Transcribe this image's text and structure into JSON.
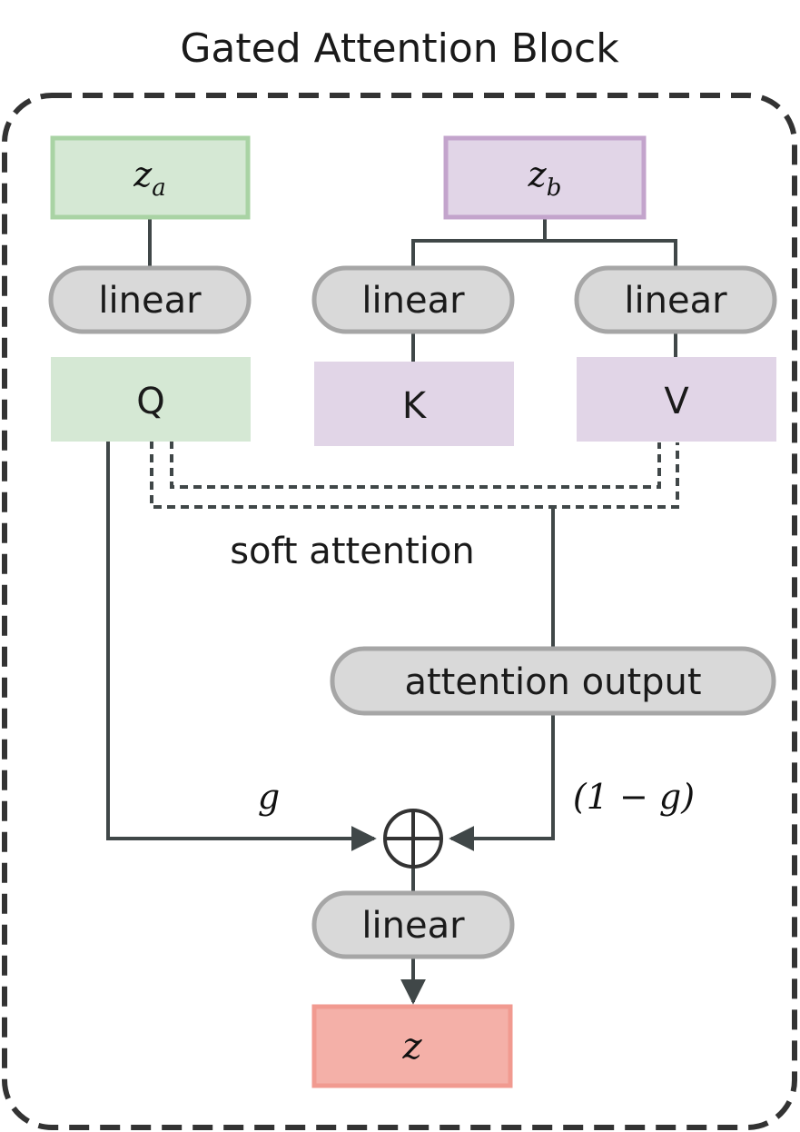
{
  "title": "Gated Attention Block",
  "inputs": {
    "za": {
      "base": "z",
      "sub": "a"
    },
    "zb": {
      "base": "z",
      "sub": "b"
    }
  },
  "linear_label": "linear",
  "qkv": {
    "q": "Q",
    "k": "K",
    "v": "V"
  },
  "soft_attention": "soft attention",
  "attention_output": "attention output",
  "gate": {
    "g": "g",
    "one_minus_g": "(1 − g)"
  },
  "output": "z",
  "colors": {
    "green_fill": "#d5e8d4",
    "green_border": "#a9d3a4",
    "purple_fill": "#e1d5e7",
    "purple_border": "#c3a4cc",
    "red_fill": "#f4b0a8",
    "red_border": "#f19a90",
    "pill_fill": "#d9d9d9",
    "pill_border": "#a6a6a6",
    "line": "#404748"
  }
}
